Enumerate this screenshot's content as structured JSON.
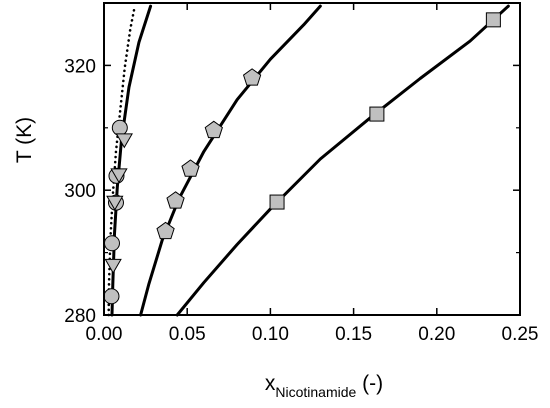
{
  "chart_data": {
    "type": "scatter",
    "title": "",
    "xlabel": {
      "main": "x",
      "sub": "Nicotinamide",
      "unit": " (-)"
    },
    "ylabel": "T (K)",
    "xlim": [
      0,
      0.25
    ],
    "ylim": [
      280,
      330
    ],
    "x_ticks": [
      0.0,
      0.05,
      0.1,
      0.15,
      0.2,
      0.25
    ],
    "x_tick_labels": [
      "0.00",
      "0.05",
      "0.10",
      "0.15",
      "0.20",
      "0.25"
    ],
    "y_ticks": [
      280,
      300,
      320
    ],
    "y_tick_labels": [
      "280",
      "300",
      "320"
    ],
    "y_minor_ticks": [
      290,
      310
    ],
    "grid": false,
    "legend": "none",
    "series": [
      {
        "marker": "square",
        "color": "#c0c0c0",
        "points": [
          [
            0.104,
            298.1
          ],
          [
            0.164,
            312.2
          ],
          [
            0.234,
            327.3
          ]
        ]
      },
      {
        "marker": "pentagon",
        "color": "#c0c0c0",
        "points": [
          [
            0.037,
            293.4
          ],
          [
            0.043,
            298.3
          ],
          [
            0.052,
            303.4
          ],
          [
            0.066,
            309.6
          ],
          [
            0.089,
            318.0
          ]
        ]
      },
      {
        "marker": "circle",
        "color": "#c0c0c0",
        "points": [
          [
            0.0045,
            283.0
          ],
          [
            0.0048,
            291.5
          ],
          [
            0.0072,
            298.0
          ],
          [
            0.0075,
            302.3
          ],
          [
            0.0095,
            310.0
          ]
        ]
      },
      {
        "marker": "triangle-down",
        "color": "#c0c0c0",
        "points": [
          [
            0.0055,
            288.2
          ],
          [
            0.0065,
            298.3
          ],
          [
            0.009,
            302.7
          ],
          [
            0.0122,
            308.3
          ]
        ]
      }
    ],
    "curves": [
      {
        "style": "solid",
        "points": [
          [
            0.044,
            280
          ],
          [
            0.06,
            285.2
          ],
          [
            0.08,
            291.3
          ],
          [
            0.1,
            297.0
          ],
          [
            0.13,
            305.0
          ],
          [
            0.16,
            311.6
          ],
          [
            0.19,
            317.9
          ],
          [
            0.22,
            323.9
          ],
          [
            0.243,
            329.5
          ]
        ]
      },
      {
        "style": "solid",
        "points": [
          [
            0.022,
            280
          ],
          [
            0.027,
            285.0
          ],
          [
            0.035,
            292.0
          ],
          [
            0.045,
            298.6
          ],
          [
            0.06,
            306.2
          ],
          [
            0.08,
            314.5
          ],
          [
            0.1,
            321.0
          ],
          [
            0.12,
            326.5
          ],
          [
            0.13,
            329.5
          ]
        ]
      },
      {
        "style": "solid",
        "points": [
          [
            0.0048,
            280
          ],
          [
            0.0053,
            285.0
          ],
          [
            0.0063,
            293.0
          ],
          [
            0.008,
            300.5
          ],
          [
            0.0105,
            308.0
          ],
          [
            0.015,
            316.5
          ],
          [
            0.021,
            323.7
          ],
          [
            0.028,
            329.5
          ]
        ]
      },
      {
        "style": "dotted",
        "points": [
          [
            0.0028,
            280
          ],
          [
            0.003,
            285.0
          ],
          [
            0.0038,
            292.0
          ],
          [
            0.0052,
            298.8
          ],
          [
            0.0072,
            306.2
          ],
          [
            0.01,
            313.4
          ],
          [
            0.0125,
            319.7
          ],
          [
            0.0158,
            325.8
          ],
          [
            0.0185,
            329.5
          ]
        ]
      }
    ]
  }
}
